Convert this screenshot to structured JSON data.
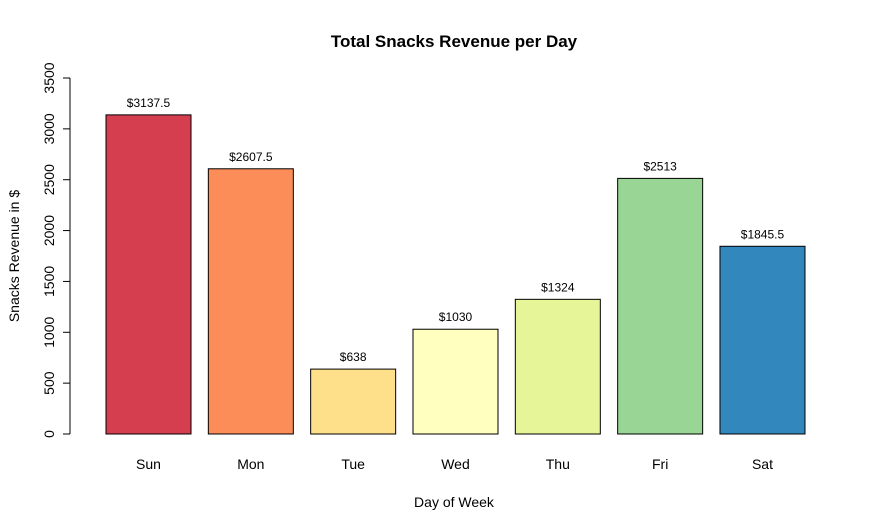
{
  "chart_data": {
    "type": "bar",
    "title": "Total Snacks Revenue per Day",
    "xlabel": "Day of Week",
    "ylabel": "Snacks Revenue in $",
    "ylim": [
      0,
      3500
    ],
    "yticks": [
      0,
      500,
      1000,
      1500,
      2000,
      2500,
      3000,
      3500
    ],
    "grid": false,
    "categories": [
      "Sun",
      "Mon",
      "Tue",
      "Wed",
      "Thu",
      "Fri",
      "Sat"
    ],
    "values": [
      3137.5,
      2607.5,
      638,
      1030,
      1324,
      2513,
      1845.5
    ],
    "data_labels": [
      "$3137.5",
      "$2607.5",
      "$638",
      "$1030",
      "$1324",
      "$2513",
      "$1845.5"
    ],
    "colors": [
      "#D53E4F",
      "#FC8D59",
      "#FEE08B",
      "#FFFFBF",
      "#E6F598",
      "#99D594",
      "#3288BD"
    ]
  }
}
